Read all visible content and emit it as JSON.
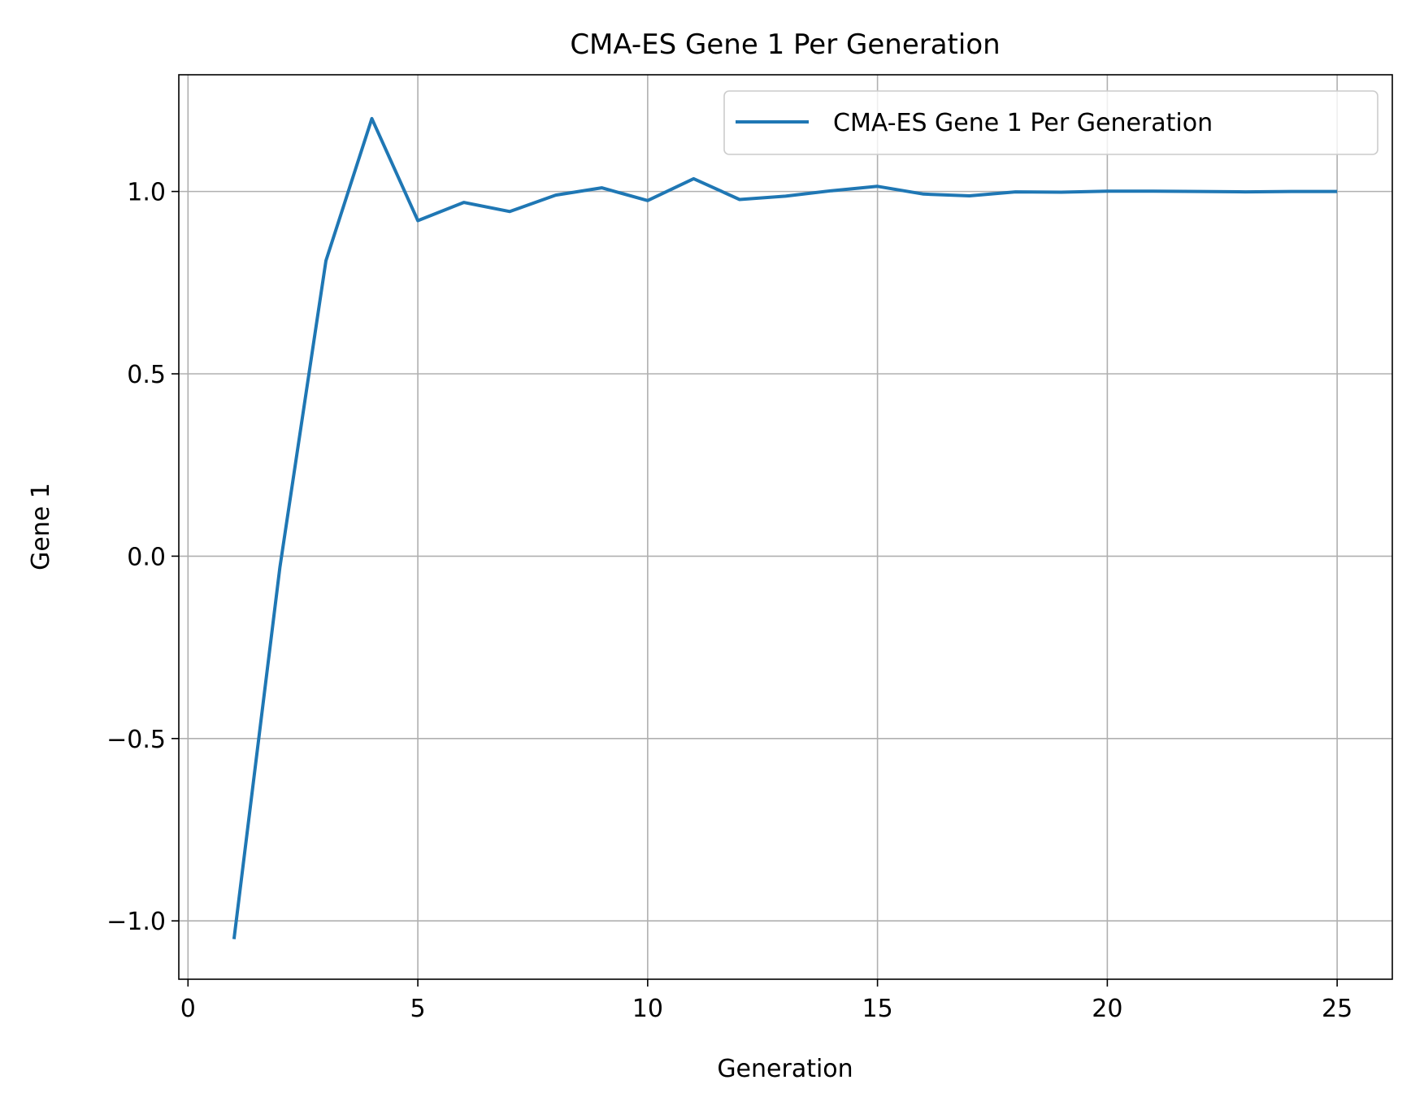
{
  "chart_data": {
    "type": "line",
    "title": "CMA-ES Gene 1 Per Generation",
    "xlabel": "Generation",
    "ylabel": "Gene 1",
    "xlim": [
      -0.2,
      26.2
    ],
    "ylim": [
      -1.16,
      1.32
    ],
    "xticks": [
      0,
      5,
      10,
      15,
      20,
      25
    ],
    "xtick_labels": [
      "0",
      "5",
      "10",
      "15",
      "20",
      "25"
    ],
    "yticks": [
      -1.0,
      -0.5,
      0.0,
      0.5,
      1.0
    ],
    "ytick_labels": [
      "−1.0",
      "−0.5",
      "0.0",
      "0.5",
      "1.0"
    ],
    "grid": true,
    "legend_position": "top-right",
    "series": [
      {
        "name": "CMA-ES Gene 1 Per Generation",
        "color": "#1f77b4",
        "x": [
          1,
          2,
          3,
          4,
          5,
          6,
          7,
          8,
          9,
          10,
          11,
          12,
          13,
          14,
          15,
          16,
          17,
          18,
          19,
          20,
          21,
          22,
          23,
          24,
          25
        ],
        "y": [
          -1.05,
          -0.03,
          0.81,
          1.2,
          0.92,
          0.97,
          0.945,
          0.99,
          1.01,
          0.975,
          1.035,
          0.978,
          0.987,
          1.002,
          1.014,
          0.993,
          0.988,
          0.999,
          0.998,
          1.001,
          1.001,
          1.0,
          0.999,
          1.0,
          1.0
        ]
      }
    ]
  }
}
